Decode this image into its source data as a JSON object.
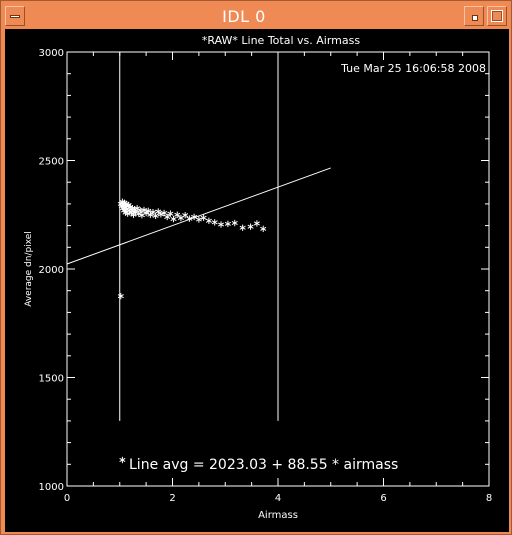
{
  "window": {
    "title": "IDL 0",
    "colors": {
      "frame": "#ef8a55",
      "canvas": "#000000",
      "ink": "#ffffff"
    },
    "controls": [
      "window-menu-icon",
      "minimize-icon",
      "maximize-icon"
    ]
  },
  "chart_data": {
    "type": "scatter",
    "title": "*RAW* Line Total vs. Airmass",
    "timestamp": "Tue Mar 25 16:06:58 2008",
    "xlabel": "Airmass",
    "ylabel": "Average dn/pixel",
    "xlim": [
      0,
      8
    ],
    "ylim": [
      1000,
      3000
    ],
    "xticks": [
      0,
      2,
      4,
      6,
      8
    ],
    "yticks": [
      1000,
      1500,
      2000,
      2500,
      3000
    ],
    "marker": "asterisk",
    "points": [
      {
        "x": 1.02,
        "y": 1875
      },
      {
        "x": 1.02,
        "y": 2300
      },
      {
        "x": 1.04,
        "y": 2290
      },
      {
        "x": 1.05,
        "y": 2310
      },
      {
        "x": 1.06,
        "y": 2280
      },
      {
        "x": 1.07,
        "y": 2295
      },
      {
        "x": 1.08,
        "y": 2270
      },
      {
        "x": 1.09,
        "y": 2305
      },
      {
        "x": 1.1,
        "y": 2285
      },
      {
        "x": 1.11,
        "y": 2260
      },
      {
        "x": 1.12,
        "y": 2300
      },
      {
        "x": 1.13,
        "y": 2275
      },
      {
        "x": 1.14,
        "y": 2290
      },
      {
        "x": 1.15,
        "y": 2255
      },
      {
        "x": 1.17,
        "y": 2295
      },
      {
        "x": 1.18,
        "y": 2270
      },
      {
        "x": 1.2,
        "y": 2285
      },
      {
        "x": 1.22,
        "y": 2260
      },
      {
        "x": 1.24,
        "y": 2280
      },
      {
        "x": 1.26,
        "y": 2250
      },
      {
        "x": 1.28,
        "y": 2275
      },
      {
        "x": 1.3,
        "y": 2262
      },
      {
        "x": 1.33,
        "y": 2280
      },
      {
        "x": 1.36,
        "y": 2255
      },
      {
        "x": 1.39,
        "y": 2270
      },
      {
        "x": 1.42,
        "y": 2248
      },
      {
        "x": 1.46,
        "y": 2272
      },
      {
        "x": 1.5,
        "y": 2258
      },
      {
        "x": 1.54,
        "y": 2268
      },
      {
        "x": 1.58,
        "y": 2250
      },
      {
        "x": 1.63,
        "y": 2262
      },
      {
        "x": 1.68,
        "y": 2245
      },
      {
        "x": 1.73,
        "y": 2265
      },
      {
        "x": 1.78,
        "y": 2252
      },
      {
        "x": 1.84,
        "y": 2258
      },
      {
        "x": 1.9,
        "y": 2240
      },
      {
        "x": 1.96,
        "y": 2255
      },
      {
        "x": 2.02,
        "y": 2230
      },
      {
        "x": 2.09,
        "y": 2250
      },
      {
        "x": 2.16,
        "y": 2235
      },
      {
        "x": 2.24,
        "y": 2248
      },
      {
        "x": 2.32,
        "y": 2232
      },
      {
        "x": 2.41,
        "y": 2240
      },
      {
        "x": 2.5,
        "y": 2228
      },
      {
        "x": 2.59,
        "y": 2236
      },
      {
        "x": 2.69,
        "y": 2222
      },
      {
        "x": 2.8,
        "y": 2215
      },
      {
        "x": 2.92,
        "y": 2205
      },
      {
        "x": 3.05,
        "y": 2208
      },
      {
        "x": 3.18,
        "y": 2212
      },
      {
        "x": 3.33,
        "y": 2190
      },
      {
        "x": 3.48,
        "y": 2195
      },
      {
        "x": 3.6,
        "y": 2210
      },
      {
        "x": 3.72,
        "y": 2185
      }
    ],
    "fit": {
      "intercept": 2023.03,
      "slope": 88.55,
      "x_range": [
        0,
        5
      ]
    },
    "vertical_lines": [
      {
        "x": 1.0,
        "y_range": [
          1300,
          3000
        ]
      },
      {
        "x": 4.0,
        "y_range": [
          1300,
          3000
        ]
      }
    ],
    "annotation": {
      "marker_x": 1.05,
      "marker_y": 1120,
      "text": "Line avg = 2023.03 + 88.55 * airmass"
    }
  }
}
